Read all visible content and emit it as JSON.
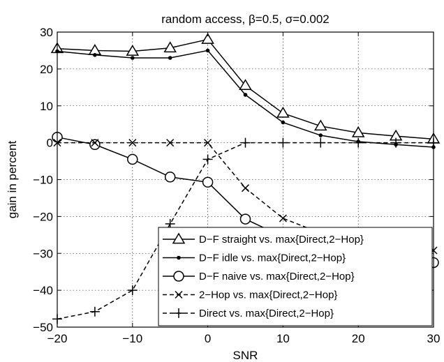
{
  "chart_data": {
    "type": "line",
    "title": "random access, β=0.5, σ=0.002",
    "xlabel": "SNR",
    "ylabel": "gain in percent",
    "xlim": [
      -20,
      30
    ],
    "ylim": [
      -50,
      30
    ],
    "xticks": [
      -20,
      -10,
      0,
      10,
      20,
      30
    ],
    "yticks": [
      -50,
      -40,
      -30,
      -20,
      -10,
      0,
      10,
      20,
      30
    ],
    "xtick_labels": [
      "−20",
      "−10",
      "0",
      "10",
      "20",
      "30"
    ],
    "ytick_labels": [
      "−50",
      "−40",
      "−30",
      "−20",
      "−10",
      "0",
      "10",
      "20",
      "30"
    ],
    "grid": true,
    "legend_position": "bottom-right",
    "x": [
      -20,
      -15,
      -10,
      -5,
      0,
      5,
      10,
      15,
      20,
      25,
      30
    ],
    "series": [
      {
        "name": "D−F straight vs. max{Direct,2−Hop}",
        "marker": "triangle",
        "dash": "solid",
        "values": [
          25.5,
          25,
          24.8,
          25.7,
          28,
          15.5,
          8,
          4.5,
          2.7,
          1.8,
          1
        ]
      },
      {
        "name": "D−F idle vs. max{Direct,2−Hop}",
        "marker": "dot",
        "dash": "solid",
        "values": [
          24.8,
          23.8,
          23,
          23,
          25,
          13,
          5.5,
          2,
          0.3,
          -0.5,
          -1.2
        ]
      },
      {
        "name": "D−F naive vs. max{Direct,2−Hop}",
        "marker": "circle",
        "dash": "solid",
        "values": [
          1.5,
          -0.5,
          -4.5,
          -9.3,
          -10.7,
          -20.7,
          -25.5,
          -28,
          -30,
          -31.5,
          -32.5
        ]
      },
      {
        "name": "2−Hop vs. max{Direct,2−Hop}",
        "marker": "x",
        "dash": "dashed",
        "values": [
          0,
          0,
          0,
          0,
          0,
          -12.3,
          -20.5,
          -24.5,
          -27,
          -28.5,
          -29.2
        ]
      },
      {
        "name": "Direct vs. max{Direct,2−Hop}",
        "marker": "plus",
        "dash": "dashed",
        "values": [
          -47.8,
          -45.8,
          -40,
          -22,
          -4.5,
          0,
          0,
          0,
          0,
          0,
          0
        ]
      }
    ]
  }
}
